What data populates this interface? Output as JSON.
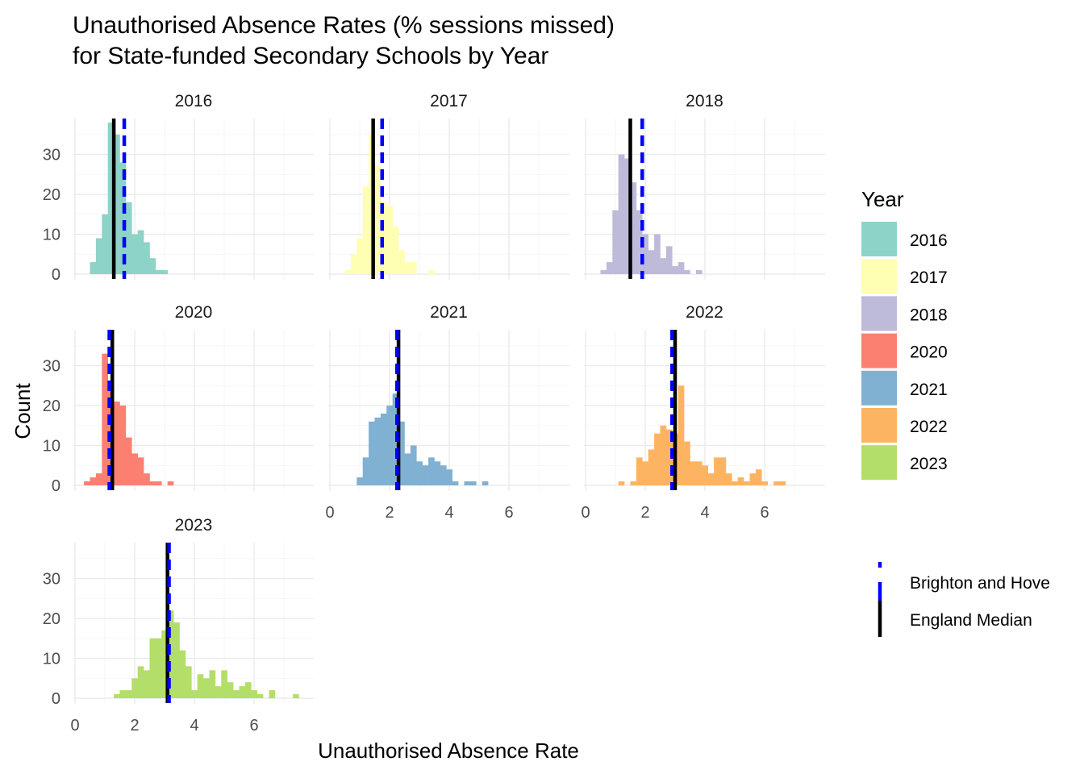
{
  "chart_data": {
    "type": "histogram",
    "title_line1": "Unauthorised Absence Rates (% sessions missed)",
    "title_line2": "for State-funded Secondary Schools by Year",
    "xlabel": "Unauthorised Absence Rate",
    "ylabel": "Count",
    "xlim": [
      0,
      7.8
    ],
    "ylim": [
      0,
      39
    ],
    "x_ticks": [
      0,
      2,
      4,
      6
    ],
    "y_ticks": [
      0,
      10,
      20,
      30
    ],
    "bin_start": 0.9,
    "bin_width": 0.2,
    "legend_fill_title": "Year",
    "legend_line_labels": [
      "Brighton and Hove",
      "England Median"
    ],
    "legend_line_colors": [
      "#0000ff",
      "#000000"
    ],
    "panels": [
      {
        "label": "2016",
        "color": "#8DD3C7",
        "bin_start": 0.5,
        "counts": [
          3,
          9,
          15,
          38,
          35,
          28,
          18,
          10,
          11,
          8,
          4,
          1,
          1
        ],
        "england_median": 1.3,
        "brighton_and_hove": 1.65
      },
      {
        "label": "2017",
        "color": "#FFFFB3",
        "bin_start": 0.5,
        "counts": [
          1,
          5,
          9,
          22,
          35,
          27,
          18,
          17,
          12,
          6,
          3,
          3,
          0,
          0,
          1
        ],
        "england_median": 1.45,
        "brighton_and_hove": 1.75
      },
      {
        "label": "2018",
        "color": "#BEBADA",
        "bin_start": 0.5,
        "counts": [
          1,
          3,
          16,
          30,
          29,
          23,
          16,
          10,
          6,
          10,
          4,
          7,
          2,
          3,
          1,
          0,
          1
        ],
        "england_median": 1.5,
        "brighton_and_hove": 1.9
      },
      {
        "label": "2020",
        "color": "#FB8072",
        "bin_start": 0.3,
        "counts": [
          1,
          2,
          3,
          33,
          25,
          21,
          20,
          12,
          8,
          7,
          3,
          1,
          1,
          0,
          1
        ],
        "england_median": 1.25,
        "brighton_and_hove": 1.15
      },
      {
        "label": "2021",
        "color": "#80B1D3",
        "bin_start": 0.9,
        "counts": [
          2,
          7,
          16,
          17,
          18,
          20,
          23,
          16,
          8,
          10,
          6,
          5,
          7,
          6,
          5,
          4,
          1,
          0,
          1,
          1,
          0,
          1
        ],
        "england_median": 2.3,
        "brighton_and_hove": 2.25
      },
      {
        "label": "2022",
        "color": "#FDB462",
        "bin_start": 1.1,
        "counts": [
          1,
          0,
          1,
          7,
          6,
          9,
          13,
          15,
          14,
          13,
          25,
          11,
          6,
          6,
          5,
          3,
          7,
          7,
          3,
          1,
          2,
          1,
          3,
          4,
          1,
          0,
          1,
          1
        ],
        "england_median": 3.0,
        "brighton_and_hove": 2.9
      },
      {
        "label": "2023",
        "color": "#B3DE69",
        "bin_start": 1.3,
        "counts": [
          1,
          2,
          2,
          5,
          8,
          7,
          15,
          15,
          17,
          22,
          19,
          12,
          8,
          2,
          6,
          5,
          7,
          3,
          7,
          4,
          2,
          3,
          4,
          2,
          1,
          0,
          2,
          0,
          0,
          0,
          1
        ],
        "england_median": 3.1,
        "brighton_and_hove": 3.15
      }
    ]
  }
}
